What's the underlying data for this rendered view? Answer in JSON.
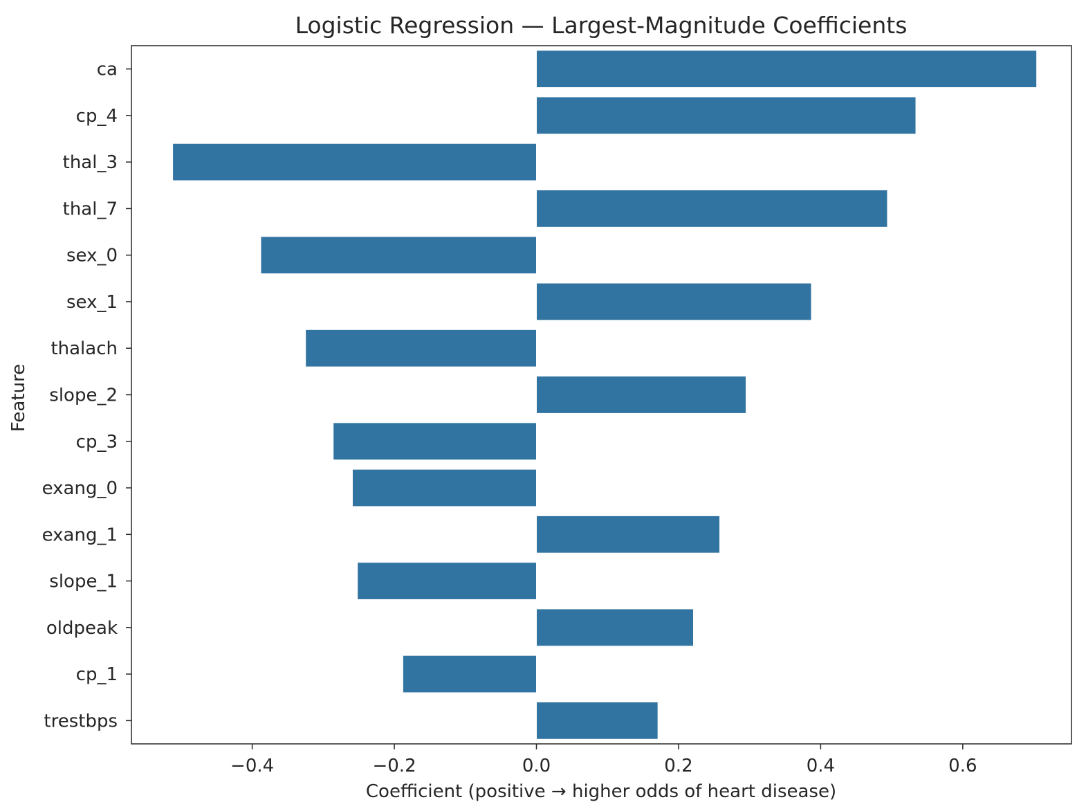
{
  "chart_data": {
    "type": "bar",
    "orientation": "horizontal",
    "title": "Logistic Regression — Largest-Magnitude Coefficients",
    "xlabel": "Coefficient (positive → higher odds of heart disease)",
    "ylabel": "Feature",
    "categories": [
      "ca",
      "cp_4",
      "thal_3",
      "thal_7",
      "sex_0",
      "sex_1",
      "thalach",
      "slope_2",
      "cp_3",
      "exang_0",
      "exang_1",
      "slope_1",
      "oldpeak",
      "cp_1",
      "trestbps"
    ],
    "values": [
      0.704,
      0.534,
      -0.512,
      0.494,
      -0.388,
      0.387,
      -0.325,
      0.295,
      -0.286,
      -0.259,
      0.258,
      -0.252,
      0.221,
      -0.188,
      0.171
    ],
    "xlim": [
      -0.57,
      0.753
    ],
    "xticks": [
      -0.4,
      -0.2,
      0.0,
      0.2,
      0.4,
      0.6
    ],
    "xtick_labels": [
      "−0.4",
      "−0.2",
      "0.0",
      "0.2",
      "0.4",
      "0.6"
    ],
    "grid": false,
    "bar_color": "#3274a1"
  }
}
